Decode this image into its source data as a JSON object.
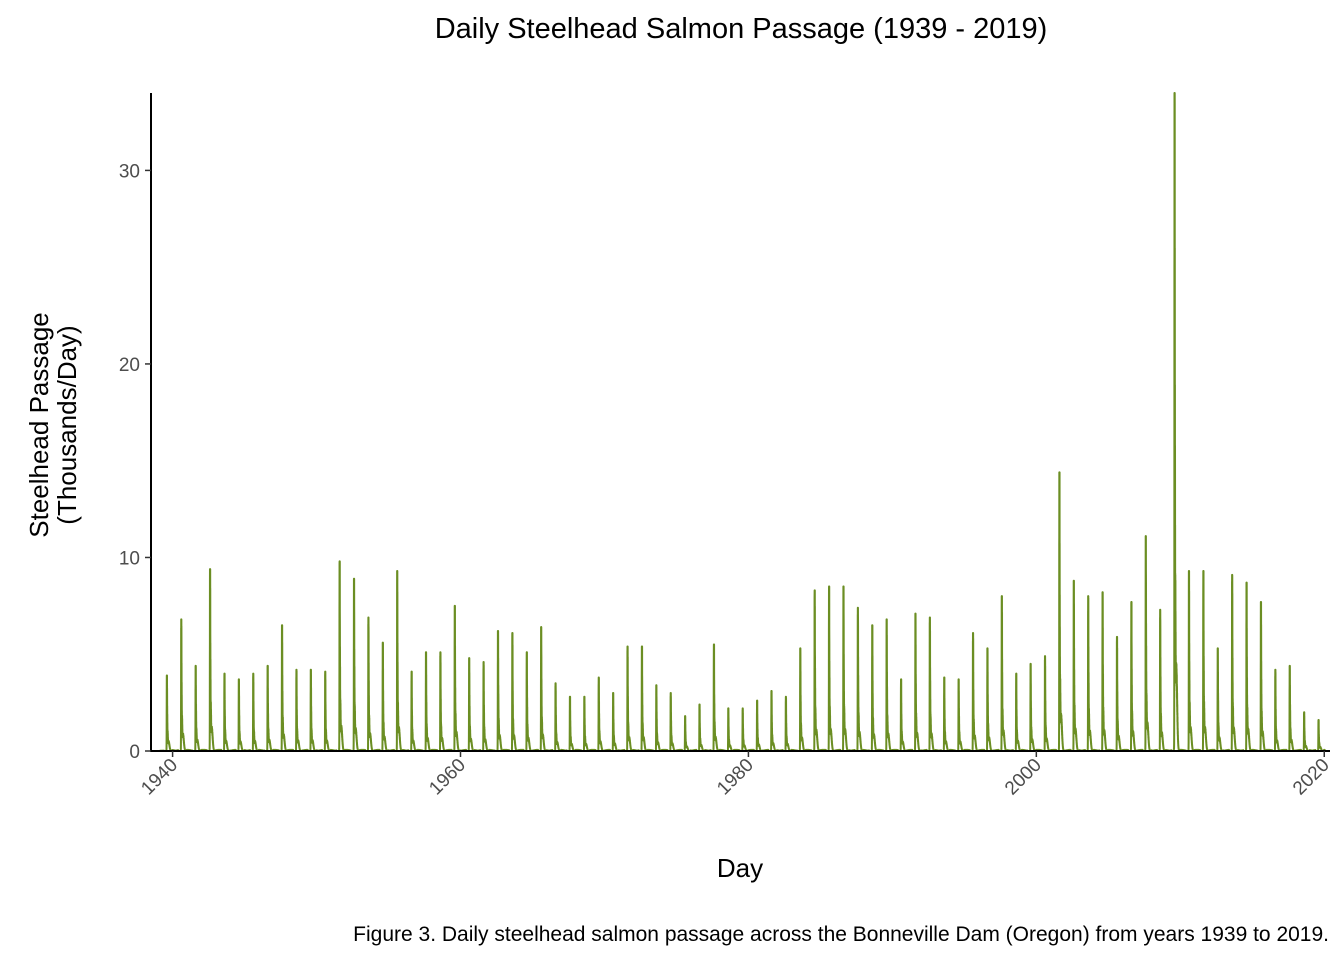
{
  "chart_data": {
    "type": "line",
    "title": "Daily Steelhead Salmon Passage (1939 - 2019)",
    "xlabel": "Day",
    "ylabel": [
      "Steelhead Passage",
      "(Thousands/Day)"
    ],
    "caption": "Figure 3. Daily steelhead salmon passage across the Bonneville Dam (Oregon) from years 1939 to 2019.",
    "xlim": [
      1938.5,
      2020.4
    ],
    "ylim": [
      0,
      34
    ],
    "x_ticks": [
      1940,
      1960,
      1980,
      2000,
      2020
    ],
    "x_tick_labels": [
      "1940",
      "1960",
      "1980",
      "2000",
      "2020"
    ],
    "y_ticks": [
      0,
      10,
      20,
      30
    ],
    "y_tick_labels": [
      "0",
      "10",
      "20",
      "30"
    ],
    "grid": false,
    "legend": "none",
    "line_color": "#6b8e23",
    "series": [
      {
        "note": "annual peak daily passage (thousands/day), peak in late summer of each year",
        "peaks": [
          [
            1939,
            3.9
          ],
          [
            1940,
            6.8
          ],
          [
            1941,
            4.4
          ],
          [
            1942,
            9.4
          ],
          [
            1943,
            4.0
          ],
          [
            1944,
            3.7
          ],
          [
            1945,
            4.0
          ],
          [
            1946,
            4.4
          ],
          [
            1947,
            6.5
          ],
          [
            1948,
            4.2
          ],
          [
            1949,
            4.2
          ],
          [
            1950,
            4.1
          ],
          [
            1951,
            9.8
          ],
          [
            1952,
            8.9
          ],
          [
            1953,
            6.9
          ],
          [
            1954,
            5.6
          ],
          [
            1955,
            9.3
          ],
          [
            1956,
            4.1
          ],
          [
            1957,
            5.1
          ],
          [
            1958,
            5.1
          ],
          [
            1959,
            7.5
          ],
          [
            1960,
            4.8
          ],
          [
            1961,
            4.6
          ],
          [
            1962,
            6.2
          ],
          [
            1963,
            6.1
          ],
          [
            1964,
            5.1
          ],
          [
            1965,
            6.4
          ],
          [
            1966,
            3.5
          ],
          [
            1967,
            2.8
          ],
          [
            1968,
            2.8
          ],
          [
            1969,
            3.8
          ],
          [
            1970,
            3.0
          ],
          [
            1971,
            5.4
          ],
          [
            1972,
            5.4
          ],
          [
            1973,
            3.4
          ],
          [
            1974,
            3.0
          ],
          [
            1975,
            1.8
          ],
          [
            1976,
            2.4
          ],
          [
            1977,
            5.5
          ],
          [
            1978,
            2.2
          ],
          [
            1979,
            2.2
          ],
          [
            1980,
            2.6
          ],
          [
            1981,
            3.1
          ],
          [
            1982,
            2.8
          ],
          [
            1983,
            5.3
          ],
          [
            1984,
            8.3
          ],
          [
            1985,
            8.5
          ],
          [
            1986,
            8.5
          ],
          [
            1987,
            7.4
          ],
          [
            1988,
            6.5
          ],
          [
            1989,
            6.8
          ],
          [
            1990,
            3.7
          ],
          [
            1991,
            7.1
          ],
          [
            1992,
            6.9
          ],
          [
            1993,
            3.8
          ],
          [
            1994,
            3.7
          ],
          [
            1995,
            6.1
          ],
          [
            1996,
            5.3
          ],
          [
            1997,
            8.0
          ],
          [
            1998,
            4.0
          ],
          [
            1999,
            4.5
          ],
          [
            2000,
            4.9
          ],
          [
            2001,
            14.4
          ],
          [
            2002,
            8.8
          ],
          [
            2003,
            8.0
          ],
          [
            2004,
            8.2
          ],
          [
            2005,
            5.9
          ],
          [
            2006,
            7.7
          ],
          [
            2007,
            11.1
          ],
          [
            2008,
            7.3
          ],
          [
            2009,
            34.0
          ],
          [
            2010,
            9.3
          ],
          [
            2011,
            9.3
          ],
          [
            2012,
            5.3
          ],
          [
            2013,
            9.1
          ],
          [
            2014,
            8.7
          ],
          [
            2015,
            7.7
          ],
          [
            2016,
            4.2
          ],
          [
            2017,
            4.4
          ],
          [
            2018,
            2.0
          ],
          [
            2019,
            1.6
          ]
        ]
      }
    ]
  }
}
